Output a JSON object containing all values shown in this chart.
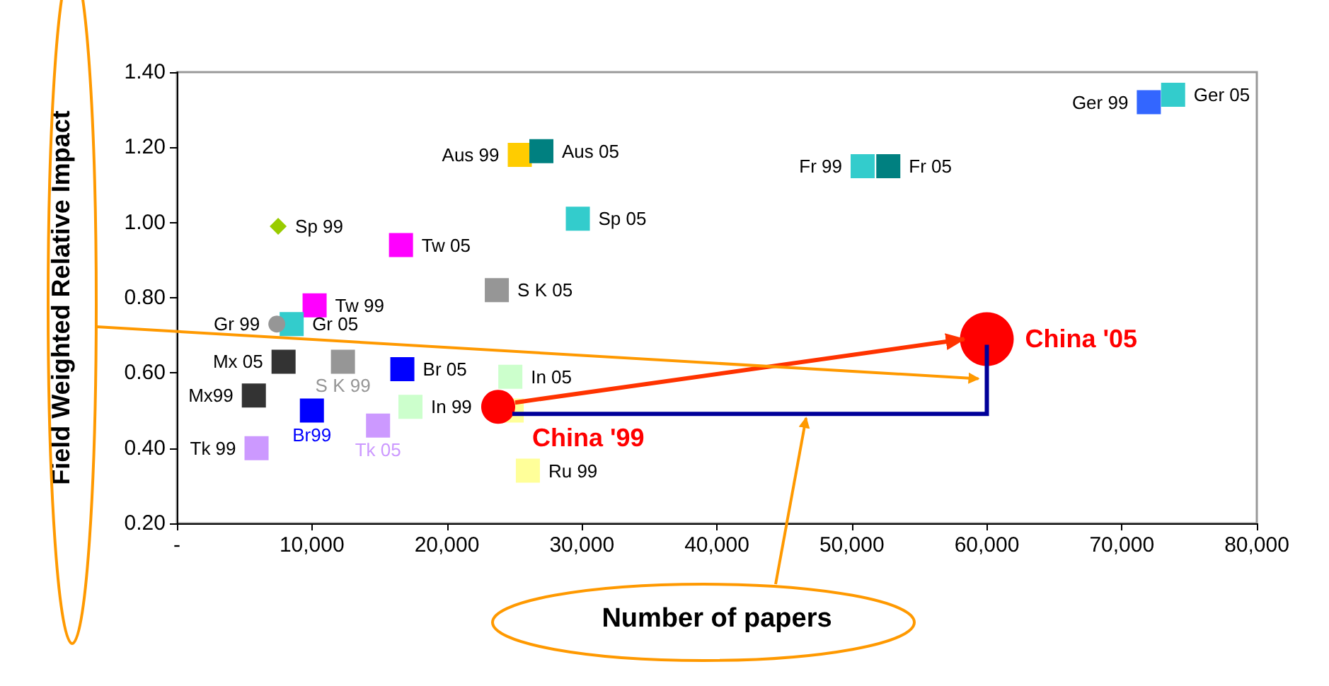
{
  "chart_data": {
    "type": "scatter",
    "xlabel": "Number of papers",
    "ylabel": "Field Weighted Relative Impact",
    "xlim": [
      0,
      80000
    ],
    "xticks": [
      {
        "value": 0,
        "label": "-"
      },
      {
        "value": 10000,
        "label": "10,000"
      },
      {
        "value": 20000,
        "label": "20,000"
      },
      {
        "value": 30000,
        "label": "30,000"
      },
      {
        "value": 40000,
        "label": "40,000"
      },
      {
        "value": 50000,
        "label": "50,000"
      },
      {
        "value": 60000,
        "label": "60,000"
      },
      {
        "value": 70000,
        "label": "70,000"
      },
      {
        "value": 80000,
        "label": "80,000"
      }
    ],
    "ylim": [
      0.2,
      1.4
    ],
    "yticks": [
      {
        "value": 0.2,
        "label": "0.20"
      },
      {
        "value": 0.4,
        "label": "0.40"
      },
      {
        "value": 0.6,
        "label": "0.60"
      },
      {
        "value": 0.8,
        "label": "0.80"
      },
      {
        "value": 1.0,
        "label": "1.00"
      },
      {
        "value": 1.2,
        "label": "1.20"
      },
      {
        "value": 1.4,
        "label": "1.40"
      }
    ],
    "grid": false,
    "series": [
      {
        "name": "Ger 99",
        "color": "#3366ff",
        "marker": "square",
        "x": [
          72000
        ],
        "values": [
          1.32
        ]
      },
      {
        "name": "Ger 05",
        "color": "#33cccc",
        "marker": "square",
        "x": [
          73800
        ],
        "values": [
          1.34
        ]
      },
      {
        "name": "Fr 99",
        "color": "#33cccc",
        "marker": "square",
        "x": [
          50800
        ],
        "values": [
          1.15
        ]
      },
      {
        "name": "Fr 05",
        "color": "#008080",
        "marker": "square",
        "x": [
          52700
        ],
        "values": [
          1.15
        ]
      },
      {
        "name": "Aus 99",
        "color": "#ffcc00",
        "marker": "square",
        "x": [
          25400
        ],
        "values": [
          1.18
        ]
      },
      {
        "name": "Aus 05",
        "color": "#008080",
        "marker": "square",
        "x": [
          27000
        ],
        "values": [
          1.19
        ]
      },
      {
        "name": "Sp 99",
        "color": "#99cc00",
        "marker": "diamond",
        "x": [
          7500
        ],
        "values": [
          0.99
        ]
      },
      {
        "name": "Sp 05",
        "color": "#33cccc",
        "marker": "square",
        "x": [
          29700
        ],
        "values": [
          1.01
        ]
      },
      {
        "name": "Tw 99",
        "color": "#ff00ff",
        "marker": "square",
        "x": [
          10200
        ],
        "values": [
          0.78
        ]
      },
      {
        "name": "Tw 05",
        "color": "#ff00ff",
        "marker": "square",
        "x": [
          16600
        ],
        "values": [
          0.94
        ]
      },
      {
        "name": "S K 99",
        "color": "#969696",
        "marker": "square",
        "x": [
          12300
        ],
        "values": [
          0.63
        ]
      },
      {
        "name": "S K 05",
        "color": "#969696",
        "marker": "square",
        "x": [
          23700
        ],
        "values": [
          0.82
        ]
      },
      {
        "name": "Gr 05",
        "color": "#33cccc",
        "marker": "square",
        "x": [
          8500
        ],
        "values": [
          0.73
        ]
      },
      {
        "name": "Gr 99",
        "color": "#969696",
        "marker": "circle",
        "x": [
          7400
        ],
        "values": [
          0.73
        ]
      },
      {
        "name": "Mx99",
        "color": "#333333",
        "marker": "square",
        "x": [
          5700
        ],
        "values": [
          0.54
        ]
      },
      {
        "name": "Mx 05",
        "color": "#333333",
        "marker": "square",
        "x": [
          7900
        ],
        "values": [
          0.63
        ]
      },
      {
        "name": "Br99",
        "color": "#0000ff",
        "marker": "square",
        "x": [
          10000
        ],
        "values": [
          0.5
        ]
      },
      {
        "name": "Br 05",
        "color": "#0000ff",
        "marker": "square",
        "x": [
          16700
        ],
        "values": [
          0.61
        ]
      },
      {
        "name": "In 99",
        "color": "#ccffcc",
        "marker": "square",
        "x": [
          17300
        ],
        "values": [
          0.51
        ]
      },
      {
        "name": "In 05",
        "color": "#ccffcc",
        "marker": "square",
        "x": [
          24700
        ],
        "values": [
          0.59
        ]
      },
      {
        "name": "Tk 99",
        "color": "#cc99ff",
        "marker": "square",
        "x": [
          5900
        ],
        "values": [
          0.4
        ]
      },
      {
        "name": "Tk 05",
        "color": "#cc99ff",
        "marker": "square",
        "x": [
          14900
        ],
        "values": [
          0.46
        ]
      },
      {
        "name": "Ru 99",
        "color": "#ffff99",
        "marker": "square",
        "x": [
          26000
        ],
        "values": [
          0.34
        ]
      },
      {
        "color": "#ffff99",
        "marker": "square",
        "x": [
          24800
        ],
        "values": [
          0.5
        ]
      },
      {
        "name": "China '99",
        "type": "bubble",
        "color": "#ff0000",
        "marker": "circle",
        "x": [
          23800
        ],
        "values": [
          0.51
        ],
        "sizes": [
          0.4
        ]
      },
      {
        "name": "China '05",
        "type": "bubble",
        "color": "#ff0000",
        "marker": "circle",
        "x": [
          60000
        ],
        "values": [
          0.69
        ],
        "sizes": [
          1
        ]
      }
    ]
  }
}
